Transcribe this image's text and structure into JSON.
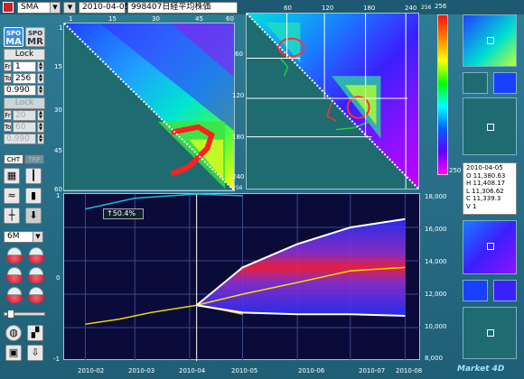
{
  "toolbar": {
    "indicator": "SMA",
    "date": "2010-04-05",
    "symbol": "998407日経平均株価"
  },
  "sidebar": {
    "spo_ma_top": "SPO",
    "spo_ma_bottom": "MA",
    "spo_mr_top": "SPO",
    "spo_mr_bottom": "MR",
    "lock1": "Lock",
    "fr1_label": "Fr",
    "fr1_value": "1",
    "to1_label": "To",
    "to1_value": "256",
    "ratio1": "0.990",
    "lock2": "Lock",
    "fr2_label": "Fr",
    "fr2_value": "20",
    "to2_label": "To",
    "to2_value": "60",
    "ratio2": "0.990",
    "tab_cht": "CHT",
    "tab_trp": "TRP",
    "period": "6M"
  },
  "heatmap_left": {
    "x_ticks": [
      "1",
      "15",
      "30",
      "45",
      "60"
    ],
    "y_ticks": [
      "1",
      "15",
      "30",
      "45",
      "60"
    ]
  },
  "heatmap_right": {
    "x_ticks": [
      "60",
      "120",
      "180",
      "240",
      "256"
    ],
    "y_ticks": [
      "60",
      "120",
      "180",
      "240",
      "256"
    ]
  },
  "colorbar": {
    "top": "256",
    "bottom": "250"
  },
  "main_chart": {
    "left_ticks": [
      "1",
      "0",
      "-1"
    ],
    "right_ticks": [
      "18,000",
      "16,000",
      "14,000",
      "12,000",
      "10,000",
      "8,000"
    ],
    "x_ticks": [
      "2010-02",
      "2010-03",
      "2010-04",
      "2010-05",
      "2010-06",
      "2010-07",
      "2010-08"
    ],
    "pct": "↑50.4%"
  },
  "info": {
    "date": "2010-04-05",
    "open": "O 11,380.63",
    "high": "H 11,408.17",
    "low": "L 11,306.62",
    "close": "C 11,339.3",
    "volume": "V 1"
  },
  "brand": "Market 4D",
  "chart_data": {
    "type": "line",
    "title": "",
    "xlabel": "",
    "ylabel": "",
    "x_range": [
      "2010-02",
      "2010-08"
    ],
    "ylim_right": [
      8000,
      18000
    ],
    "ylim_left": [
      -1,
      1
    ],
    "grid": true,
    "series": [
      {
        "kind": "price",
        "color": "#e8d800",
        "points": [
          [
            "2010-02-01",
            10200
          ],
          [
            "2010-02-20",
            10500
          ],
          [
            "2010-03-10",
            10900
          ],
          [
            "2010-04-05",
            11340
          ],
          [
            "2010-04-20",
            11050
          ],
          [
            "2010-05-01",
            10800
          ]
        ]
      },
      {
        "kind": "forecast-center",
        "color": "#ffe000",
        "points": [
          [
            "2010-04-05",
            11340
          ],
          [
            "2010-05-01",
            12000
          ],
          [
            "2010-06-01",
            12700
          ],
          [
            "2010-07-01",
            13400
          ],
          [
            "2010-08-01",
            13600
          ]
        ]
      },
      {
        "kind": "forecast-upper",
        "color": "#ffffff",
        "points": [
          [
            "2010-04-05",
            11340
          ],
          [
            "2010-05-01",
            13600
          ],
          [
            "2010-06-01",
            15000
          ],
          [
            "2010-07-01",
            16000
          ],
          [
            "2010-08-01",
            16500
          ]
        ]
      },
      {
        "kind": "forecast-lower",
        "color": "#ffffff",
        "points": [
          [
            "2010-04-05",
            11340
          ],
          [
            "2010-05-01",
            10900
          ],
          [
            "2010-06-01",
            10800
          ],
          [
            "2010-07-01",
            10800
          ],
          [
            "2010-08-01",
            10700
          ]
        ]
      },
      {
        "kind": "oscillator",
        "color": "#22b8e0",
        "points": [
          [
            "2010-02-01",
            0.82
          ],
          [
            "2010-03-01",
            0.95
          ],
          [
            "2010-04-05",
            1.0
          ],
          [
            "2010-05-01",
            0.98
          ]
        ]
      }
    ],
    "cursor_date": "2010-04-05"
  }
}
